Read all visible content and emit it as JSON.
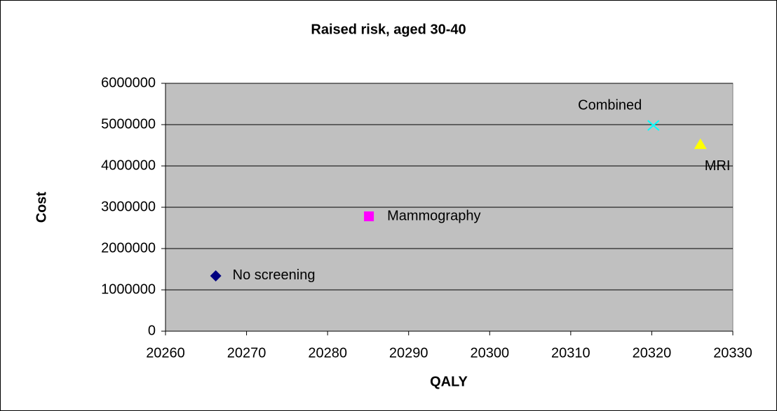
{
  "chart_data": {
    "type": "scatter",
    "title": "Raised risk, aged 30-40",
    "x_label": "QALY",
    "y_label": "Cost",
    "series": [
      {
        "name": "No screening",
        "color": "#000080",
        "marker": "diamond",
        "x": [
          20266.2
        ],
        "values": [
          1340000
        ]
      },
      {
        "name": "Mammography",
        "color": "#ff00ff",
        "marker": "square",
        "x": [
          20285.1
        ],
        "values": [
          2780000
        ]
      },
      {
        "name": "Combined",
        "color": "#00ffff",
        "marker": "x",
        "x": [
          20320.2
        ],
        "values": [
          4980000
        ]
      },
      {
        "name": "MRI",
        "color": "#ffff00",
        "marker": "triangle",
        "x": [
          20326
        ],
        "values": [
          4530000
        ]
      }
    ],
    "xlim": [
      20260,
      20330
    ],
    "xticks": [
      20260,
      20270,
      20280,
      20290,
      20300,
      20310,
      20320,
      20330
    ],
    "ylim": [
      0,
      6000000
    ],
    "yticks": [
      0,
      1000000,
      2000000,
      3000000,
      4000000,
      5000000,
      6000000
    ],
    "grid": true,
    "plot_background": "#c0c0c0"
  }
}
